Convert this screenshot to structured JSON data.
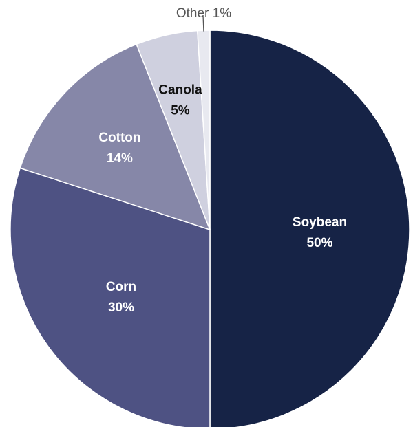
{
  "chart_data": {
    "type": "pie",
    "title": "",
    "start_angle_deg": 0,
    "direction": "clockwise",
    "slices": [
      {
        "label": "Soybean",
        "value": 50,
        "value_label": "50%",
        "color": "#162346",
        "text_color": "#ffffff"
      },
      {
        "label": "Corn",
        "value": 30,
        "value_label": "30%",
        "color": "#4e5283",
        "text_color": "#ffffff"
      },
      {
        "label": "Cotton",
        "value": 14,
        "value_label": "14%",
        "color": "#8687a8",
        "text_color": "#ffffff"
      },
      {
        "label": "Canola",
        "value": 5,
        "value_label": "5%",
        "color": "#cfd0df",
        "text_color": "#111111"
      },
      {
        "label": "Other",
        "value": 1,
        "value_label": "1%",
        "color": "#e8e9f0",
        "text_color": "#555555",
        "outside_text": "Other 1%"
      }
    ],
    "slice_border_color": "#ffffff",
    "leader_line_color": "#555555"
  }
}
